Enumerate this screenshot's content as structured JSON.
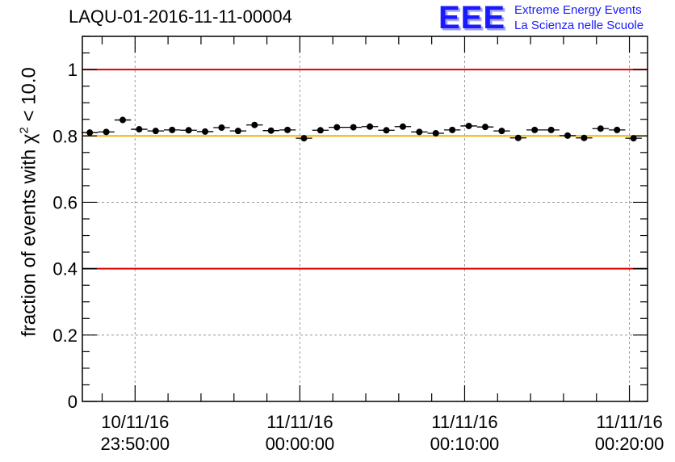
{
  "header": {
    "title": "LAQU-01-2016-11-11-00004",
    "logo_mark": "EEE",
    "logo_line1": "Extreme Energy Events",
    "logo_line2": "La Scienza nelle Scuole"
  },
  "y_axis": {
    "label_prefix": "fraction of events with χ",
    "label_sup": "2",
    "label_suffix": " < 10.0"
  },
  "colors": {
    "limit_line": "#e00000",
    "reference_line": "#f2b600",
    "marker": "#000000",
    "grid": "#9a9a9a"
  },
  "chart_data": {
    "type": "scatter",
    "title": "LAQU-01-2016-11-11-00004",
    "ylabel": "fraction of events with χ2 < 10.0",
    "xlabel": "",
    "ylim": [
      0,
      1.1
    ],
    "xlim_minutes": [
      -13.2,
      21.1
    ],
    "x_unit": "minutes relative to 11/11/16 00:00:00",
    "y_ticks": [
      "0",
      "0.2",
      "0.4",
      "0.6",
      "0.8",
      "1"
    ],
    "y_tick_values": [
      0,
      0.2,
      0.4,
      0.6,
      0.8,
      1.0
    ],
    "x_ticks": [
      {
        "minute": -10,
        "date": "10/11/16",
        "time": "23:50:00"
      },
      {
        "minute": 0,
        "date": "11/11/16",
        "time": "00:00:00"
      },
      {
        "minute": 10,
        "date": "11/11/16",
        "time": "00:10:00"
      },
      {
        "minute": 20,
        "date": "11/11/16",
        "time": "00:20:00"
      }
    ],
    "grid": true,
    "horizontal_lines": [
      {
        "y": 1.0,
        "name": "upper-limit",
        "color": "#e00000"
      },
      {
        "y": 0.8,
        "name": "reference",
        "color": "#f2b600"
      },
      {
        "y": 0.4,
        "name": "lower-limit",
        "color": "#e00000"
      }
    ],
    "x": [
      -12.75,
      -11.75,
      -10.75,
      -9.75,
      -8.75,
      -7.75,
      -6.75,
      -5.75,
      -4.75,
      -3.75,
      -2.75,
      -1.75,
      -0.75,
      0.25,
      1.25,
      2.25,
      3.25,
      4.25,
      5.25,
      6.25,
      7.25,
      8.25,
      9.25,
      10.25,
      11.25,
      12.25,
      13.25,
      14.25,
      15.25,
      16.25,
      17.25,
      18.25,
      19.25,
      20.25
    ],
    "values": [
      0.81,
      0.812,
      0.848,
      0.82,
      0.815,
      0.818,
      0.817,
      0.813,
      0.825,
      0.815,
      0.833,
      0.816,
      0.818,
      0.793,
      0.817,
      0.826,
      0.826,
      0.828,
      0.817,
      0.828,
      0.812,
      0.808,
      0.818,
      0.83,
      0.827,
      0.815,
      0.794,
      0.818,
      0.818,
      0.801,
      0.794,
      0.822,
      0.818,
      0.793
    ],
    "errors": [
      0.006,
      0.006,
      0.006,
      0.006,
      0.006,
      0.006,
      0.006,
      0.006,
      0.006,
      0.006,
      0.006,
      0.006,
      0.006,
      0.006,
      0.006,
      0.006,
      0.006,
      0.006,
      0.006,
      0.006,
      0.006,
      0.006,
      0.006,
      0.006,
      0.006,
      0.006,
      0.006,
      0.006,
      0.006,
      0.006,
      0.006,
      0.006,
      0.006,
      0.006
    ]
  }
}
